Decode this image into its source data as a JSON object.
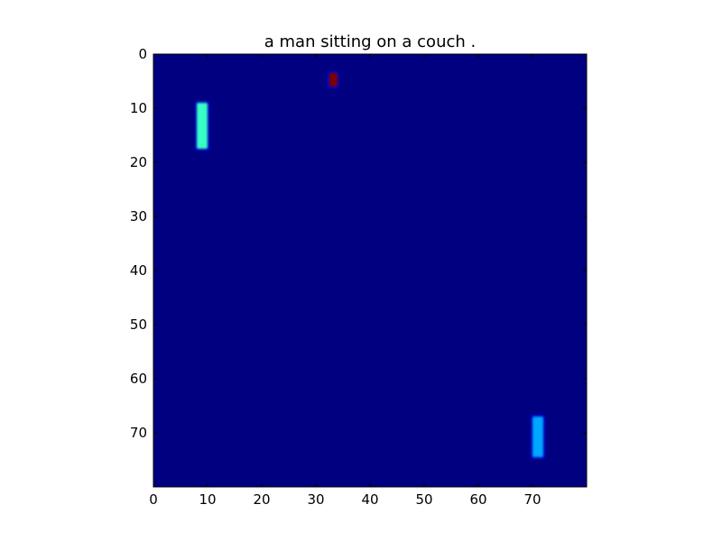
{
  "chart_data": {
    "type": "heatmap",
    "title": "a man sitting on a couch .",
    "xlabel": "",
    "ylabel": "",
    "colormap": "jet",
    "background_color": "#000080",
    "grid": false,
    "xlim": [
      0,
      80
    ],
    "ylim": [
      80,
      0
    ],
    "x_ticks": [
      0,
      10,
      20,
      30,
      40,
      50,
      60,
      70
    ],
    "y_ticks": [
      0,
      10,
      20,
      30,
      40,
      50,
      60,
      70
    ],
    "x_tick_labels": [
      "0",
      "10",
      "20",
      "30",
      "40",
      "50",
      "60",
      "70"
    ],
    "y_tick_labels": [
      "0",
      "10",
      "20",
      "30",
      "40",
      "50",
      "60",
      "70"
    ],
    "regions": [
      {
        "x": [
          8,
          10
        ],
        "y": [
          9,
          17.5
        ],
        "level": 0.45,
        "color": "#38ffc4"
      },
      {
        "x": [
          70,
          72
        ],
        "y": [
          67,
          74.5
        ],
        "level": 0.3,
        "color": "#00a8ff"
      },
      {
        "x": [
          32.5,
          34
        ],
        "y": [
          3.5,
          6
        ],
        "level": 1.0,
        "color": "#800000"
      }
    ]
  }
}
